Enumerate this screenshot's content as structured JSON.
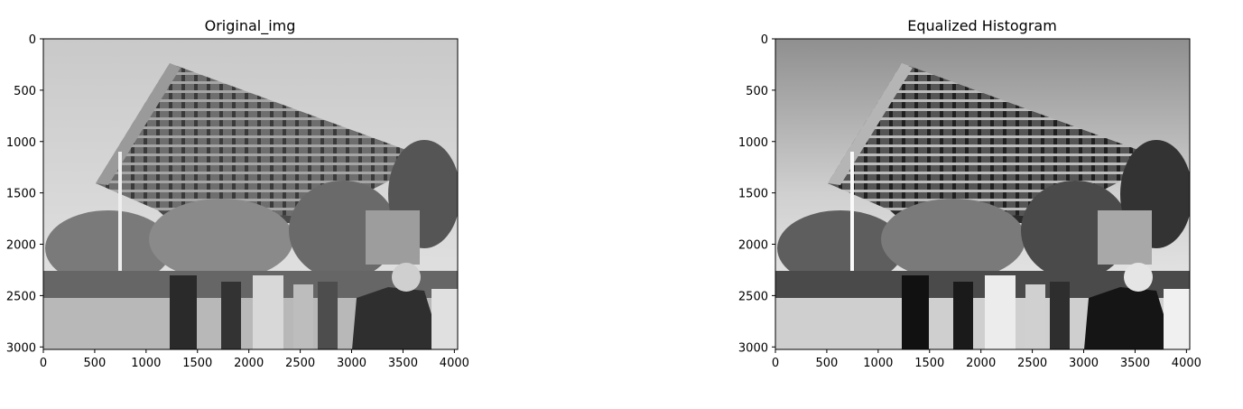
{
  "chart_data": [
    {
      "type": "image",
      "title": "Original_img",
      "xlabel": "",
      "ylabel": "",
      "xlim": [
        0,
        4032
      ],
      "ylim": [
        3024,
        0
      ],
      "xticks": [
        0,
        500,
        1000,
        1500,
        2000,
        2500,
        3000,
        3500,
        4000
      ],
      "yticks": [
        0,
        500,
        1000,
        1500,
        2000,
        2500,
        3000
      ],
      "colormap": "gray",
      "image_content": "grayscale photo of a pyramid-shaped building with people on a street"
    },
    {
      "type": "image",
      "title": "Equalized Histogram",
      "xlabel": "",
      "ylabel": "",
      "xlim": [
        0,
        4032
      ],
      "ylim": [
        3024,
        0
      ],
      "xticks": [
        0,
        500,
        1000,
        1500,
        2000,
        2500,
        3000,
        3500,
        4000
      ],
      "yticks": [
        0,
        500,
        1000,
        1500,
        2000,
        2500,
        3000
      ],
      "colormap": "gray",
      "image_content": "histogram-equalized version of the same grayscale photo"
    }
  ]
}
